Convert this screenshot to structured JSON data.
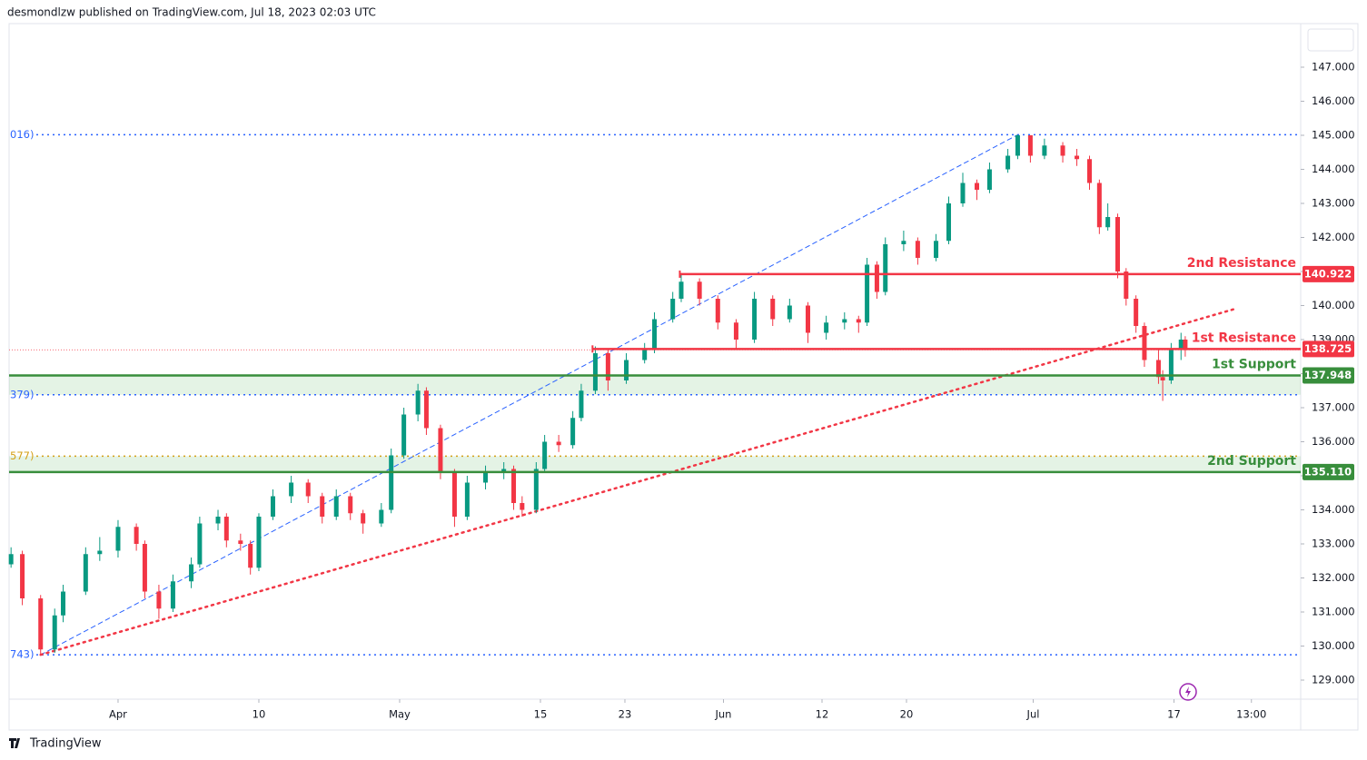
{
  "chart_data": {
    "type": "candlestick",
    "header": "desmondlzw published on TradingView.com, Jul 18, 2023 02:03 UTC",
    "brand": "TradingView",
    "up_color": "#089981",
    "down_color": "#f23645",
    "xlim": [
      -7.74,
      84
    ],
    "ylim": [
      128.44,
      148.28
    ],
    "xticks": [
      {
        "value": 0,
        "label": "Apr"
      },
      10,
      {
        "value": 20,
        "label": "May"
      },
      {
        "value": 30,
        "label": "15"
      },
      {
        "value": 36,
        "label": "23"
      },
      {
        "value": 43,
        "label": "Jun"
      },
      {
        "value": 50,
        "label": "12"
      },
      {
        "value": 56,
        "label": "20"
      },
      {
        "value": 65,
        "label": "Jul"
      },
      {
        "value": 75,
        "label": "17"
      },
      {
        "value": 80.5,
        "label": "13:00"
      }
    ],
    "yticks": [
      {
        "value": 129,
        "label": "129.000"
      },
      {
        "value": 130,
        "label": "130.000"
      },
      {
        "value": 131,
        "label": "131.000"
      },
      {
        "value": 132,
        "label": "132.000"
      },
      {
        "value": 133,
        "label": "133.000"
      },
      {
        "value": 134,
        "label": "134.000"
      },
      {
        "value": 135,
        "label": "135.000"
      },
      {
        "value": 136,
        "label": "136.000"
      },
      {
        "value": 137,
        "label": "137.000"
      },
      {
        "value": 138,
        "label": "138.000"
      },
      {
        "value": 139,
        "label": "139.000"
      },
      {
        "value": 140,
        "label": "140.000"
      },
      {
        "value": 141,
        "label": "141.000"
      },
      {
        "value": 142,
        "label": "142.000"
      },
      {
        "value": 143,
        "label": "143.000"
      },
      {
        "value": 144,
        "label": "144.000"
      },
      {
        "value": 145,
        "label": "145.000"
      },
      {
        "value": 146,
        "label": "146.000"
      },
      {
        "value": 147,
        "label": "147.000"
      }
    ],
    "x": [
      -7.6,
      -6.8,
      -5.5,
      -4.5,
      -3.9,
      -2.3,
      -1.3,
      0,
      1.3,
      1.9,
      2.9,
      3.9,
      5.2,
      5.8,
      7.1,
      7.7,
      8.7,
      9.4,
      10,
      11,
      12.3,
      13.5,
      14.5,
      15.5,
      16.5,
      17.4,
      18.7,
      19.4,
      20.3,
      21.3,
      21.9,
      22.9,
      23.9,
      24.8,
      26.1,
      27.4,
      28.1,
      28.7,
      29.7,
      30.3,
      31.3,
      32.3,
      32.9,
      33.9,
      34.8,
      36.1,
      37.4,
      38.1,
      39.4,
      40,
      41.3,
      42.6,
      43.9,
      45.2,
      46.5,
      47.7,
      49,
      50.3,
      51.6,
      52.6,
      53.2,
      53.9,
      54.5,
      55.8,
      56.8,
      58.1,
      59,
      60,
      61,
      61.9,
      63.2,
      63.9,
      64.8,
      65.8,
      67.1,
      68.1,
      69,
      69.7,
      70.3,
      71,
      71.6,
      72.3,
      72.9,
      73.9,
      74.2,
      74.8,
      75.5,
      75.8
    ],
    "open": [
      132.4,
      132.7,
      131.4,
      129.9,
      130.9,
      131.6,
      132.7,
      132.8,
      133.5,
      133.0,
      131.6,
      131.1,
      131.9,
      132.4,
      133.6,
      133.8,
      133.1,
      133.0,
      132.3,
      133.8,
      134.4,
      134.8,
      134.4,
      133.8,
      134.4,
      133.9,
      133.6,
      134.0,
      135.6,
      136.8,
      137.5,
      136.4,
      135.1,
      133.8,
      134.8,
      135.1,
      135.2,
      134.2,
      134.0,
      135.2,
      136.0,
      135.9,
      136.7,
      137.5,
      138.6,
      137.8,
      138.4,
      138.7,
      139.6,
      140.2,
      140.7,
      140.2,
      139.5,
      139.0,
      140.2,
      139.6,
      140.0,
      139.2,
      139.5,
      139.6,
      139.5,
      141.2,
      140.4,
      141.8,
      141.9,
      141.4,
      141.9,
      143.0,
      143.6,
      143.4,
      144.0,
      144.4,
      145.0,
      144.4,
      144.7,
      144.4,
      144.3,
      143.6,
      142.3,
      142.6,
      141.0,
      140.2,
      139.4,
      138.4,
      137.9,
      137.8,
      138.7,
      139.0
    ],
    "high": [
      132.9,
      132.8,
      131.5,
      131.1,
      131.8,
      132.9,
      133.2,
      133.7,
      133.6,
      133.1,
      131.8,
      132.1,
      132.6,
      133.8,
      134.0,
      133.9,
      133.3,
      133.1,
      133.9,
      134.6,
      135.0,
      134.9,
      134.5,
      134.6,
      134.5,
      134.0,
      134.2,
      135.8,
      137.0,
      137.7,
      137.6,
      136.5,
      135.2,
      135.0,
      135.3,
      135.4,
      135.3,
      134.4,
      135.4,
      136.2,
      136.2,
      136.9,
      137.7,
      138.8,
      138.7,
      138.6,
      138.9,
      139.8,
      140.4,
      140.922,
      140.8,
      140.3,
      139.6,
      140.4,
      140.3,
      140.2,
      140.1,
      139.7,
      139.8,
      139.7,
      141.4,
      141.3,
      142.0,
      142.2,
      142.0,
      142.1,
      143.2,
      143.9,
      143.7,
      144.2,
      144.6,
      145.016,
      145.0,
      144.9,
      144.8,
      144.6,
      144.4,
      143.7,
      143.0,
      142.7,
      141.1,
      140.3,
      139.5,
      138.7,
      138.1,
      138.9,
      139.2,
      139.1
    ],
    "low": [
      132.3,
      131.2,
      129.743,
      129.8,
      130.7,
      131.5,
      132.5,
      132.6,
      132.8,
      131.4,
      130.8,
      131.0,
      131.7,
      132.3,
      133.4,
      132.9,
      132.8,
      132.1,
      132.2,
      133.7,
      134.2,
      134.2,
      133.6,
      133.7,
      133.7,
      133.3,
      133.5,
      133.9,
      135.5,
      136.6,
      136.2,
      134.9,
      133.5,
      133.7,
      134.6,
      134.9,
      134.0,
      133.8,
      133.9,
      135.1,
      135.7,
      135.8,
      136.6,
      137.4,
      137.5,
      137.7,
      138.3,
      138.6,
      139.5,
      140.1,
      140.0,
      139.3,
      138.7,
      138.9,
      139.4,
      139.5,
      138.9,
      139.0,
      139.3,
      139.2,
      139.4,
      140.2,
      140.3,
      141.6,
      141.2,
      141.3,
      141.8,
      142.9,
      143.1,
      143.3,
      143.9,
      144.3,
      144.2,
      144.3,
      144.2,
      144.1,
      143.4,
      142.1,
      142.2,
      140.8,
      140.0,
      139.2,
      138.2,
      137.7,
      137.2,
      137.7,
      138.4,
      138.5
    ],
    "close": [
      132.7,
      131.4,
      129.9,
      130.9,
      131.6,
      132.7,
      132.8,
      133.5,
      133.0,
      131.6,
      131.1,
      131.9,
      132.4,
      133.6,
      133.8,
      133.1,
      133.0,
      132.3,
      133.8,
      134.4,
      134.8,
      134.4,
      133.8,
      134.4,
      133.9,
      133.6,
      134.0,
      135.6,
      136.8,
      137.5,
      136.4,
      135.1,
      133.8,
      134.8,
      135.1,
      135.2,
      134.2,
      134.0,
      135.2,
      136.0,
      135.9,
      136.7,
      137.5,
      138.6,
      137.8,
      138.4,
      138.7,
      139.6,
      140.2,
      140.7,
      140.2,
      139.5,
      139.0,
      140.2,
      139.6,
      140.0,
      139.2,
      139.5,
      139.6,
      139.5,
      141.2,
      140.4,
      141.8,
      141.9,
      141.4,
      141.9,
      143.0,
      143.6,
      143.4,
      144.0,
      144.4,
      145.0,
      144.4,
      144.7,
      144.4,
      144.3,
      143.6,
      142.3,
      142.6,
      141.0,
      140.2,
      139.4,
      138.4,
      137.9,
      137.8,
      138.7,
      139.0,
      138.7
    ],
    "levels": [
      {
        "name": "2nd Resistance",
        "value": 140.922,
        "label": "140.922",
        "color": "#f23645",
        "from": 39.9
      },
      {
        "name": "1st Resistance",
        "value": 138.725,
        "label": "138.725",
        "color": "#f23645",
        "from": 33.7
      },
      {
        "name": "1st Support",
        "value": 137.948,
        "label": "137.948",
        "color": "#388e3c"
      },
      {
        "name": "2nd Support",
        "value": 135.11,
        "label": "135.110",
        "color": "#388e3c"
      }
    ],
    "fib_lines": [
      {
        "value": 145.016,
        "label": "016)",
        "color": "#2962ff"
      },
      {
        "value": 137.379,
        "label": "379)",
        "color": "#2962ff"
      },
      {
        "value": 135.577,
        "label": "577)",
        "color": "#d4a017"
      },
      {
        "value": 129.743,
        "label": "743)",
        "color": "#2962ff"
      }
    ],
    "trendlines": [
      {
        "style": "dashed",
        "color": "#2962ff",
        "x": [
          -5.5,
          63.9
        ],
        "y": [
          129.743,
          145.016
        ]
      },
      {
        "style": "dotted",
        "color": "#f23645",
        "x": [
          -5.5,
          79.4
        ],
        "y": [
          129.743,
          139.91
        ]
      }
    ]
  }
}
